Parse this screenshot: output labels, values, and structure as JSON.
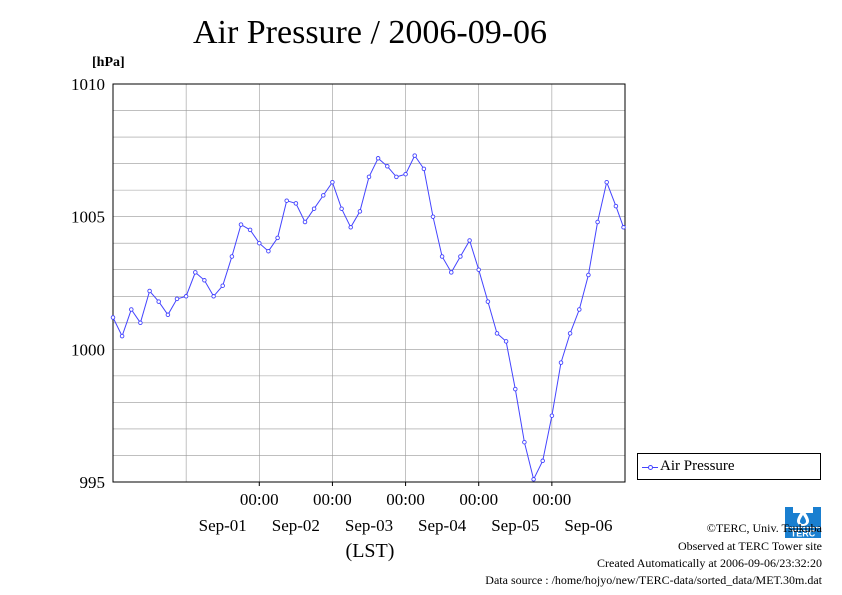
{
  "title": "Air Pressure / 2006-09-06",
  "unit_label": "[hPa]",
  "legend": {
    "label": "Air Pressure"
  },
  "footer": {
    "copyright": "©TERC, Univ. Tsukuba",
    "observed": "Observed at TERC Tower site",
    "created": "Created Automatically at 2006-09-06/23:32:20",
    "source": "Data source : /home/hojyo/new/TERC-data/sorted_data/MET.30m.dat"
  },
  "logo": {
    "text": "TERC"
  },
  "colors": {
    "series": "#4444ff",
    "grid": "#999999"
  },
  "chart_data": {
    "type": "line",
    "title": "Air Pressure / 2006-09-06",
    "ylabel": "[hPa]",
    "xlabel": "(LST)",
    "ylim": [
      995,
      1010
    ],
    "yticks": [
      "995",
      "1000",
      "1005",
      "1010"
    ],
    "xlim": [
      "2006-08-31 00:00",
      "2006-09-07 00:00"
    ],
    "x_time_labels": [
      "00:00",
      "00:00",
      "00:00",
      "00:00",
      "00:00"
    ],
    "x_date_labels": [
      "Sep-01",
      "Sep-02",
      "Sep-03",
      "Sep-04",
      "Sep-05",
      "Sep-06"
    ],
    "grid": true,
    "legend_position": "bottom-right, outside plot",
    "series": [
      {
        "name": "Air Pressure",
        "x": [
          "2006-08-31 00:00",
          "2006-08-31 03:00",
          "2006-08-31 06:00",
          "2006-08-31 09:00",
          "2006-08-31 12:00",
          "2006-08-31 15:00",
          "2006-08-31 18:00",
          "2006-08-31 21:00",
          "2006-09-01 00:00",
          "2006-09-01 03:00",
          "2006-09-01 06:00",
          "2006-09-01 09:00",
          "2006-09-01 12:00",
          "2006-09-01 15:00",
          "2006-09-01 18:00",
          "2006-09-01 21:00",
          "2006-09-02 00:00",
          "2006-09-02 03:00",
          "2006-09-02 06:00",
          "2006-09-02 09:00",
          "2006-09-02 12:00",
          "2006-09-02 15:00",
          "2006-09-02 18:00",
          "2006-09-02 21:00",
          "2006-09-03 00:00",
          "2006-09-03 03:00",
          "2006-09-03 06:00",
          "2006-09-03 09:00",
          "2006-09-03 12:00",
          "2006-09-03 15:00",
          "2006-09-03 18:00",
          "2006-09-03 21:00",
          "2006-09-04 00:00",
          "2006-09-04 03:00",
          "2006-09-04 06:00",
          "2006-09-04 09:00",
          "2006-09-04 12:00",
          "2006-09-04 15:00",
          "2006-09-04 18:00",
          "2006-09-04 21:00",
          "2006-09-05 00:00",
          "2006-09-05 03:00",
          "2006-09-05 06:00",
          "2006-09-05 09:00",
          "2006-09-05 12:00",
          "2006-09-05 15:00",
          "2006-09-05 18:00",
          "2006-09-05 21:00",
          "2006-09-06 00:00",
          "2006-09-06 03:00",
          "2006-09-06 06:00",
          "2006-09-06 09:00",
          "2006-09-06 12:00",
          "2006-09-06 15:00",
          "2006-09-06 18:00",
          "2006-09-06 21:00",
          "2006-09-06 23:30"
        ],
        "values": [
          1001.2,
          1000.5,
          1001.5,
          1001.0,
          1002.2,
          1001.8,
          1001.3,
          1001.9,
          1002.0,
          1002.9,
          1002.6,
          1002.0,
          1002.4,
          1003.5,
          1004.7,
          1004.5,
          1004.0,
          1003.7,
          1004.2,
          1005.6,
          1005.5,
          1004.8,
          1005.3,
          1005.8,
          1006.3,
          1005.3,
          1004.6,
          1005.2,
          1006.5,
          1007.2,
          1006.9,
          1006.5,
          1006.6,
          1007.3,
          1006.8,
          1005.0,
          1003.5,
          1002.9,
          1003.5,
          1004.1,
          1003.0,
          1001.8,
          1000.6,
          1000.3,
          998.5,
          996.5,
          995.1,
          995.8,
          997.5,
          999.5,
          1000.6,
          1001.5,
          1002.8,
          1004.8,
          1006.3,
          1005.4,
          1004.6
        ]
      }
    ]
  }
}
